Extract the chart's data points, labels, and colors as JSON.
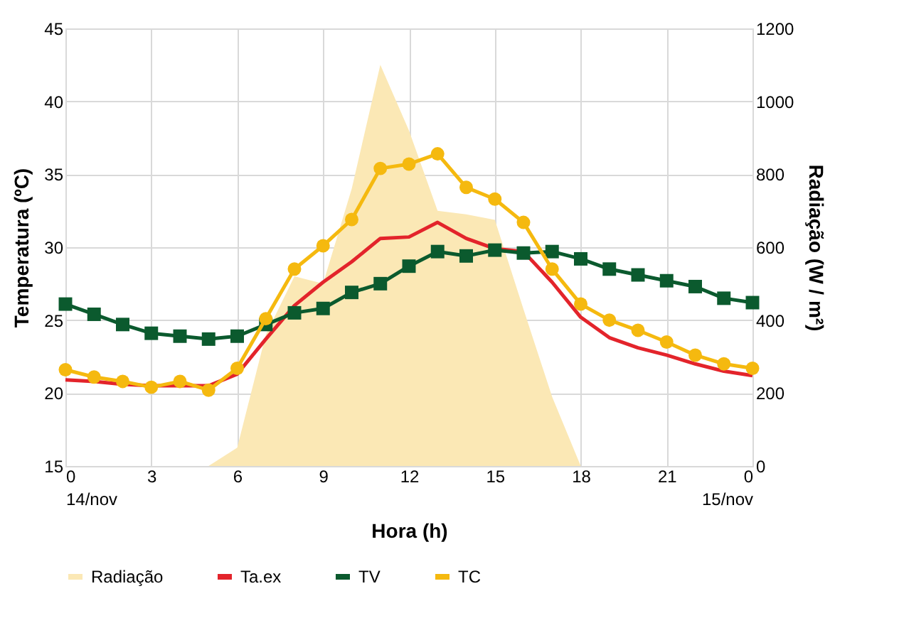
{
  "chart_data": {
    "type": "line",
    "xlabel": "Hora (h)",
    "ylabel": "Temperatura (ºC)",
    "y2label": "Radiação (W / m²)",
    "x": [
      0,
      1,
      2,
      3,
      4,
      5,
      6,
      7,
      8,
      9,
      10,
      11,
      12,
      13,
      14,
      15,
      16,
      17,
      18,
      19,
      20,
      21,
      22,
      23,
      24
    ],
    "xlim": [
      0,
      24
    ],
    "xticks": [
      {
        "value": 0,
        "label": "0\n14/nov"
      },
      3,
      6,
      9,
      12,
      15,
      18,
      21,
      {
        "value": 24,
        "label": "0\n15/nov"
      }
    ],
    "ylim": [
      15,
      45
    ],
    "yticks": [
      15,
      20,
      25,
      30,
      35,
      40,
      45
    ],
    "y2lim": [
      0,
      1200
    ],
    "y2ticks": [
      0,
      200,
      400,
      600,
      800,
      1000,
      1200
    ],
    "grid": true,
    "legend": "bottom",
    "series": [
      {
        "name": "Radiação",
        "type": "area",
        "axis": "y2",
        "color": "#fbe8b5",
        "values": [
          null,
          null,
          null,
          null,
          null,
          0,
          50,
          360,
          520,
          500,
          760,
          1100,
          920,
          700,
          690,
          675,
          430,
          190,
          0,
          null,
          null,
          null,
          null,
          null,
          null
        ]
      },
      {
        "name": "Ta.ex",
        "marker": "none",
        "color": "#e3242b",
        "values": [
          20.9,
          20.8,
          20.6,
          20.5,
          20.5,
          20.5,
          21.3,
          23.7,
          26.0,
          27.6,
          29.0,
          30.6,
          30.7,
          31.7,
          30.6,
          29.9,
          29.7,
          27.6,
          25.2,
          23.8,
          23.1,
          22.6,
          22.0,
          21.5,
          21.2
        ]
      },
      {
        "name": "TV",
        "marker": "square",
        "color": "#0b5a2e",
        "values": [
          26.1,
          25.4,
          24.7,
          24.1,
          23.9,
          23.7,
          23.9,
          24.7,
          25.5,
          25.8,
          26.9,
          27.5,
          28.7,
          29.7,
          29.4,
          29.8,
          29.6,
          29.7,
          29.2,
          28.5,
          28.1,
          27.7,
          27.3,
          26.5,
          26.2
        ]
      },
      {
        "name": "TC",
        "marker": "circle",
        "color": "#f5b90f",
        "values": [
          21.6,
          21.1,
          20.8,
          20.4,
          20.8,
          20.2,
          21.7,
          25.1,
          28.5,
          30.1,
          31.9,
          35.4,
          35.7,
          36.4,
          34.1,
          33.3,
          31.7,
          28.5,
          26.1,
          25.0,
          24.3,
          23.5,
          22.6,
          22.0,
          21.7
        ]
      }
    ]
  }
}
